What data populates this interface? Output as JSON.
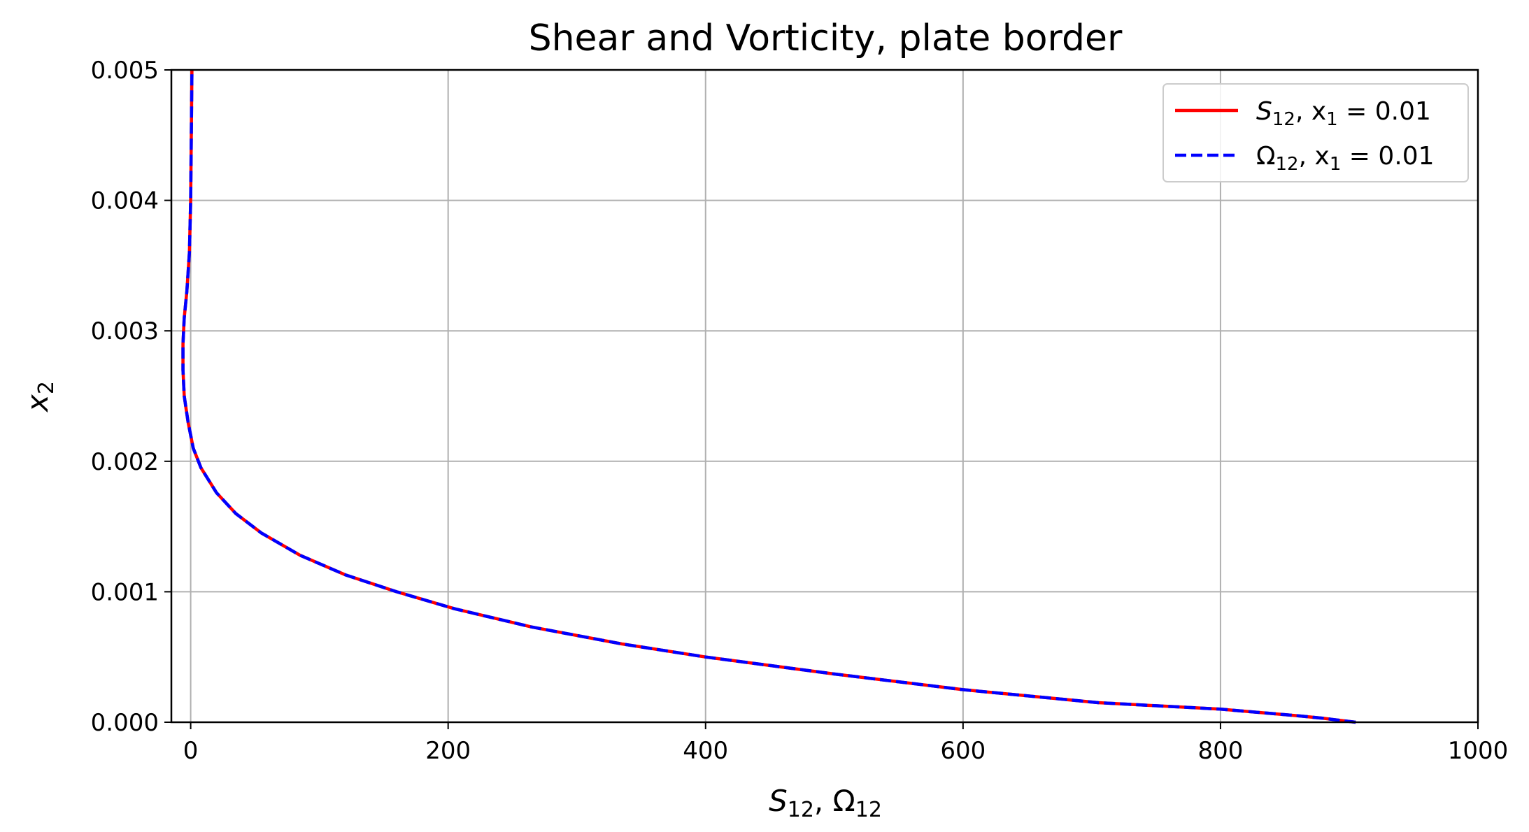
{
  "chart_data": {
    "type": "line",
    "title": "Shear and Vorticity, plate border",
    "xlabel": {
      "base1": "S",
      "sub1": "12",
      "sep": ", ",
      "base2": "Ω",
      "sub2": "12"
    },
    "ylabel": {
      "base": "x",
      "sub": "2"
    },
    "xlim": [
      -15,
      1000
    ],
    "ylim": [
      0,
      0.005
    ],
    "xticks": [
      "0",
      "200",
      "400",
      "600",
      "800",
      "1000"
    ],
    "yticks": [
      "0.000",
      "0.001",
      "0.002",
      "0.003",
      "0.004",
      "0.005"
    ],
    "grid": true,
    "legend_position": "top-right",
    "series": [
      {
        "name": {
          "base": "S",
          "sub": "12",
          "rest": ", x",
          "rest_sub": "1",
          "tail": " = 0.01"
        },
        "color": "#ff0000",
        "style": "solid",
        "x": [
          905,
          880,
          860,
          800,
          705,
          600,
          500,
          400,
          335,
          265,
          205,
          160,
          120,
          85,
          55,
          35,
          20,
          8,
          2,
          0,
          -2,
          -5,
          -6,
          -6,
          -5,
          -3,
          -1,
          0,
          0.5,
          1
        ],
        "y": [
          0.0,
          3e-05,
          5e-05,
          0.0001,
          0.00015,
          0.00025,
          0.00037,
          0.0005,
          0.0006,
          0.00073,
          0.00087,
          0.001,
          0.00113,
          0.00128,
          0.00145,
          0.0016,
          0.00176,
          0.00195,
          0.0021,
          0.0022,
          0.0023,
          0.0025,
          0.0027,
          0.0029,
          0.0031,
          0.0033,
          0.0036,
          0.004,
          0.0045,
          0.005
        ]
      },
      {
        "name": {
          "base": "Ω",
          "sub": "12",
          "rest": ", x",
          "rest_sub": "1",
          "tail": " = 0.01"
        },
        "color": "#0000ff",
        "style": "dashed",
        "x": [
          905,
          880,
          860,
          800,
          705,
          600,
          500,
          400,
          335,
          265,
          205,
          160,
          120,
          85,
          55,
          35,
          20,
          8,
          2,
          0,
          -2,
          -5,
          -6,
          -6,
          -5,
          -3,
          -1,
          0,
          0.5,
          1
        ],
        "y": [
          0.0,
          3e-05,
          5e-05,
          0.0001,
          0.00015,
          0.00025,
          0.00037,
          0.0005,
          0.0006,
          0.00073,
          0.00087,
          0.001,
          0.00113,
          0.00128,
          0.00145,
          0.0016,
          0.00176,
          0.00195,
          0.0021,
          0.0022,
          0.0023,
          0.0025,
          0.0027,
          0.0029,
          0.0031,
          0.0033,
          0.0036,
          0.004,
          0.0045,
          0.005
        ]
      }
    ]
  }
}
